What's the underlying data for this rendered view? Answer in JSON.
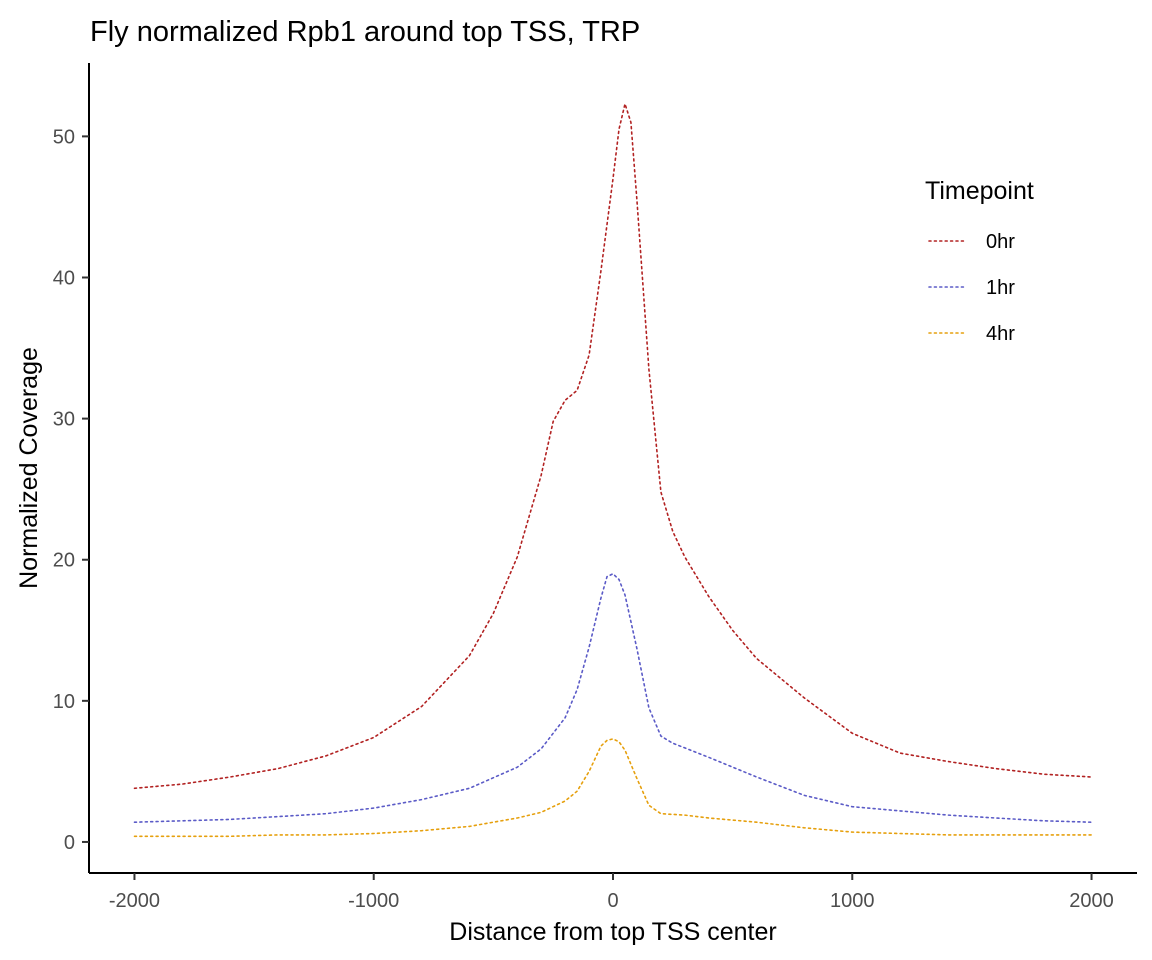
{
  "chart_data": {
    "type": "line",
    "title": "Fly normalized Rpb1 around top TSS, TRP",
    "xlabel": "Distance from top TSS center",
    "ylabel": "Normalized Coverage",
    "xlim": [
      -2190,
      2190
    ],
    "ylim": [
      -2.2,
      55.2
    ],
    "xticks": [
      -2000,
      -1000,
      0,
      1000,
      2000
    ],
    "xtick_labels": [
      "-2000",
      "-1000",
      "0",
      "1000",
      "2000"
    ],
    "yticks": [
      0,
      10,
      20,
      30,
      40,
      50
    ],
    "ytick_labels": [
      "0",
      "10",
      "20",
      "30",
      "40",
      "50"
    ],
    "grid": false,
    "legend": {
      "title": "Timepoint",
      "position": "top-right"
    },
    "series": [
      {
        "name": "0hr",
        "color": "#b22222",
        "x": [
          -2000,
          -1800,
          -1600,
          -1400,
          -1200,
          -1000,
          -800,
          -600,
          -500,
          -400,
          -300,
          -250,
          -200,
          -150,
          -100,
          -50,
          0,
          25,
          50,
          75,
          100,
          150,
          200,
          250,
          300,
          400,
          500,
          600,
          800,
          1000,
          1200,
          1400,
          1600,
          1800,
          2000
        ],
        "values": [
          3.8,
          4.1,
          4.6,
          5.2,
          6.1,
          7.4,
          9.6,
          13.2,
          16.2,
          20.2,
          26.0,
          29.8,
          31.3,
          32.0,
          34.5,
          40.5,
          47.0,
          50.5,
          52.3,
          51.0,
          45.5,
          33.5,
          24.8,
          22.0,
          20.2,
          17.4,
          15.0,
          13.0,
          10.2,
          7.7,
          6.3,
          5.7,
          5.2,
          4.8,
          4.6
        ]
      },
      {
        "name": "1hr",
        "color": "#5b5bc7",
        "x": [
          -2000,
          -1800,
          -1600,
          -1400,
          -1200,
          -1000,
          -800,
          -600,
          -400,
          -300,
          -200,
          -150,
          -100,
          -50,
          -25,
          0,
          25,
          50,
          100,
          150,
          200,
          250,
          400,
          600,
          800,
          1000,
          1200,
          1400,
          1600,
          1800,
          2000
        ],
        "values": [
          1.4,
          1.5,
          1.6,
          1.8,
          2.0,
          2.4,
          3.0,
          3.8,
          5.3,
          6.6,
          8.8,
          10.8,
          13.8,
          17.3,
          18.8,
          19.0,
          18.6,
          17.5,
          13.7,
          9.5,
          7.5,
          7.0,
          6.0,
          4.6,
          3.3,
          2.5,
          2.2,
          1.9,
          1.7,
          1.5,
          1.4
        ]
      },
      {
        "name": "4hr",
        "color": "#e6a00e",
        "x": [
          -2000,
          -1800,
          -1600,
          -1400,
          -1200,
          -1000,
          -800,
          -600,
          -400,
          -300,
          -200,
          -150,
          -100,
          -50,
          -25,
          0,
          25,
          50,
          100,
          150,
          200,
          300,
          400,
          600,
          800,
          1000,
          1200,
          1400,
          1600,
          1800,
          2000
        ],
        "values": [
          0.4,
          0.4,
          0.4,
          0.5,
          0.5,
          0.6,
          0.8,
          1.1,
          1.7,
          2.1,
          2.9,
          3.6,
          5.0,
          6.8,
          7.2,
          7.3,
          7.1,
          6.5,
          4.5,
          2.6,
          2.0,
          1.9,
          1.7,
          1.4,
          1.0,
          0.7,
          0.6,
          0.5,
          0.5,
          0.5,
          0.5
        ]
      }
    ]
  }
}
